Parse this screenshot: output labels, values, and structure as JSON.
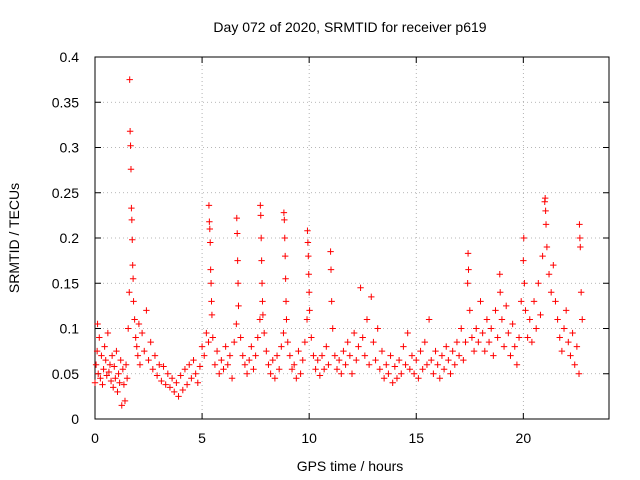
{
  "chart_data": {
    "type": "scatter",
    "title": "Day 072 of 2020, SRMTID for receiver p619",
    "xlabel": "GPS time / hours",
    "ylabel": "SRMTID / TECUs",
    "xlim": [
      0,
      24
    ],
    "ylim": [
      0,
      0.4
    ],
    "x_ticks": [
      0,
      5,
      10,
      15,
      20
    ],
    "x_tick_labels": [
      "0",
      "5",
      "10",
      "15",
      "20"
    ],
    "y_ticks": [
      0,
      0.05,
      0.1,
      0.15,
      0.2,
      0.25,
      0.3,
      0.35,
      0.4
    ],
    "y_tick_labels": [
      "0",
      "0.05",
      "0.1",
      "0.15",
      "0.2",
      "0.25",
      "0.3",
      "0.35",
      "0.4"
    ],
    "grid": true,
    "marker": "+",
    "color": "#ff0000",
    "series": [
      {
        "name": "SRMTID",
        "points": [
          [
            0.0,
            0.04
          ],
          [
            0.05,
            0.06
          ],
          [
            0.1,
            0.075
          ],
          [
            0.12,
            0.105
          ],
          [
            0.15,
            0.05
          ],
          [
            0.2,
            0.09
          ],
          [
            0.25,
            0.045
          ],
          [
            0.3,
            0.07
          ],
          [
            0.35,
            0.038
          ],
          [
            0.4,
            0.055
          ],
          [
            0.45,
            0.08
          ],
          [
            0.5,
            0.065
          ],
          [
            0.55,
            0.048
          ],
          [
            0.6,
            0.095
          ],
          [
            0.65,
            0.052
          ],
          [
            0.7,
            0.06
          ],
          [
            0.75,
            0.042
          ],
          [
            0.8,
            0.07
          ],
          [
            0.85,
            0.035
          ],
          [
            0.9,
            0.058
          ],
          [
            0.95,
            0.045
          ],
          [
            1.0,
            0.075
          ],
          [
            1.05,
            0.03
          ],
          [
            1.1,
            0.05
          ],
          [
            1.15,
            0.04
          ],
          [
            1.2,
            0.065
          ],
          [
            1.25,
            0.015
          ],
          [
            1.3,
            0.055
          ],
          [
            1.35,
            0.038
          ],
          [
            1.4,
            0.02
          ],
          [
            1.45,
            0.06
          ],
          [
            1.5,
            0.045
          ],
          [
            1.55,
            0.1
          ],
          [
            1.6,
            0.14
          ],
          [
            1.62,
            0.375
          ],
          [
            1.64,
            0.318
          ],
          [
            1.66,
            0.302
          ],
          [
            1.68,
            0.276
          ],
          [
            1.7,
            0.233
          ],
          [
            1.72,
            0.22
          ],
          [
            1.74,
            0.198
          ],
          [
            1.76,
            0.17
          ],
          [
            1.78,
            0.155
          ],
          [
            1.8,
            0.13
          ],
          [
            1.85,
            0.11
          ],
          [
            1.9,
            0.09
          ],
          [
            1.95,
            0.08
          ],
          [
            2.0,
            0.07
          ],
          [
            2.05,
            0.105
          ],
          [
            2.1,
            0.06
          ],
          [
            2.2,
            0.095
          ],
          [
            2.3,
            0.075
          ],
          [
            2.4,
            0.12
          ],
          [
            2.5,
            0.065
          ],
          [
            2.6,
            0.085
          ],
          [
            2.7,
            0.055
          ],
          [
            2.8,
            0.07
          ],
          [
            2.9,
            0.048
          ],
          [
            3.0,
            0.06
          ],
          [
            3.1,
            0.042
          ],
          [
            3.2,
            0.058
          ],
          [
            3.3,
            0.038
          ],
          [
            3.4,
            0.05
          ],
          [
            3.5,
            0.035
          ],
          [
            3.6,
            0.045
          ],
          [
            3.7,
            0.03
          ],
          [
            3.8,
            0.04
          ],
          [
            3.9,
            0.025
          ],
          [
            4.0,
            0.048
          ],
          [
            4.1,
            0.032
          ],
          [
            4.2,
            0.055
          ],
          [
            4.3,
            0.038
          ],
          [
            4.4,
            0.06
          ],
          [
            4.5,
            0.045
          ],
          [
            4.6,
            0.065
          ],
          [
            4.7,
            0.05
          ],
          [
            4.8,
            0.04
          ],
          [
            4.9,
            0.058
          ],
          [
            5.0,
            0.08
          ],
          [
            5.1,
            0.07
          ],
          [
            5.2,
            0.095
          ],
          [
            5.3,
            0.085
          ],
          [
            5.32,
            0.236
          ],
          [
            5.34,
            0.218
          ],
          [
            5.36,
            0.21
          ],
          [
            5.38,
            0.195
          ],
          [
            5.4,
            0.165
          ],
          [
            5.42,
            0.15
          ],
          [
            5.44,
            0.13
          ],
          [
            5.46,
            0.115
          ],
          [
            5.5,
            0.09
          ],
          [
            5.6,
            0.06
          ],
          [
            5.7,
            0.075
          ],
          [
            5.8,
            0.05
          ],
          [
            5.9,
            0.065
          ],
          [
            6.0,
            0.055
          ],
          [
            6.1,
            0.08
          ],
          [
            6.2,
            0.06
          ],
          [
            6.3,
            0.07
          ],
          [
            6.4,
            0.045
          ],
          [
            6.5,
            0.085
          ],
          [
            6.6,
            0.105
          ],
          [
            6.62,
            0.222
          ],
          [
            6.64,
            0.205
          ],
          [
            6.66,
            0.175
          ],
          [
            6.68,
            0.15
          ],
          [
            6.7,
            0.125
          ],
          [
            6.8,
            0.09
          ],
          [
            6.9,
            0.07
          ],
          [
            7.0,
            0.06
          ],
          [
            7.1,
            0.05
          ],
          [
            7.2,
            0.065
          ],
          [
            7.3,
            0.08
          ],
          [
            7.4,
            0.055
          ],
          [
            7.5,
            0.07
          ],
          [
            7.6,
            0.09
          ],
          [
            7.7,
            0.11
          ],
          [
            7.72,
            0.236
          ],
          [
            7.74,
            0.225
          ],
          [
            7.76,
            0.2
          ],
          [
            7.78,
            0.175
          ],
          [
            7.8,
            0.15
          ],
          [
            7.82,
            0.13
          ],
          [
            7.84,
            0.115
          ],
          [
            7.9,
            0.095
          ],
          [
            8.0,
            0.075
          ],
          [
            8.1,
            0.06
          ],
          [
            8.2,
            0.05
          ],
          [
            8.3,
            0.065
          ],
          [
            8.4,
            0.045
          ],
          [
            8.5,
            0.07
          ],
          [
            8.6,
            0.055
          ],
          [
            8.7,
            0.08
          ],
          [
            8.8,
            0.095
          ],
          [
            8.82,
            0.228
          ],
          [
            8.84,
            0.22
          ],
          [
            8.86,
            0.2
          ],
          [
            8.88,
            0.18
          ],
          [
            8.9,
            0.155
          ],
          [
            8.92,
            0.13
          ],
          [
            8.94,
            0.11
          ],
          [
            9.0,
            0.085
          ],
          [
            9.1,
            0.07
          ],
          [
            9.2,
            0.055
          ],
          [
            9.3,
            0.06
          ],
          [
            9.4,
            0.045
          ],
          [
            9.5,
            0.075
          ],
          [
            9.6,
            0.05
          ],
          [
            9.7,
            0.065
          ],
          [
            9.8,
            0.085
          ],
          [
            9.9,
            0.11
          ],
          [
            9.92,
            0.208
          ],
          [
            9.94,
            0.195
          ],
          [
            9.96,
            0.18
          ],
          [
            9.98,
            0.16
          ],
          [
            10.0,
            0.14
          ],
          [
            10.02,
            0.12
          ],
          [
            10.1,
            0.09
          ],
          [
            10.2,
            0.07
          ],
          [
            10.3,
            0.055
          ],
          [
            10.4,
            0.065
          ],
          [
            10.5,
            0.048
          ],
          [
            10.6,
            0.07
          ],
          [
            10.7,
            0.055
          ],
          [
            10.8,
            0.08
          ],
          [
            10.9,
            0.06
          ],
          [
            11.0,
            0.185
          ],
          [
            11.02,
            0.165
          ],
          [
            11.05,
            0.13
          ],
          [
            11.1,
            0.1
          ],
          [
            11.2,
            0.07
          ],
          [
            11.3,
            0.055
          ],
          [
            11.4,
            0.065
          ],
          [
            11.5,
            0.05
          ],
          [
            11.6,
            0.075
          ],
          [
            11.7,
            0.06
          ],
          [
            11.8,
            0.085
          ],
          [
            11.9,
            0.07
          ],
          [
            12.0,
            0.05
          ],
          [
            12.1,
            0.095
          ],
          [
            12.2,
            0.065
          ],
          [
            12.3,
            0.08
          ],
          [
            12.4,
            0.145
          ],
          [
            12.5,
            0.09
          ],
          [
            12.6,
            0.07
          ],
          [
            12.7,
            0.11
          ],
          [
            12.8,
            0.06
          ],
          [
            12.9,
            0.135
          ],
          [
            13.0,
            0.085
          ],
          [
            13.1,
            0.065
          ],
          [
            13.2,
            0.1
          ],
          [
            13.3,
            0.055
          ],
          [
            13.4,
            0.075
          ],
          [
            13.5,
            0.045
          ],
          [
            13.6,
            0.06
          ],
          [
            13.7,
            0.05
          ],
          [
            13.8,
            0.07
          ],
          [
            13.9,
            0.04
          ],
          [
            14.0,
            0.058
          ],
          [
            14.1,
            0.045
          ],
          [
            14.2,
            0.065
          ],
          [
            14.3,
            0.05
          ],
          [
            14.4,
            0.08
          ],
          [
            14.5,
            0.06
          ],
          [
            14.6,
            0.095
          ],
          [
            14.7,
            0.055
          ],
          [
            14.8,
            0.07
          ],
          [
            14.9,
            0.05
          ],
          [
            15.0,
            0.065
          ],
          [
            15.1,
            0.045
          ],
          [
            15.2,
            0.075
          ],
          [
            15.3,
            0.055
          ],
          [
            15.4,
            0.085
          ],
          [
            15.5,
            0.06
          ],
          [
            15.6,
            0.11
          ],
          [
            15.7,
            0.065
          ],
          [
            15.8,
            0.05
          ],
          [
            15.9,
            0.075
          ],
          [
            16.0,
            0.06
          ],
          [
            16.1,
            0.045
          ],
          [
            16.2,
            0.07
          ],
          [
            16.3,
            0.055
          ],
          [
            16.4,
            0.08
          ],
          [
            16.5,
            0.065
          ],
          [
            16.6,
            0.05
          ],
          [
            16.7,
            0.075
          ],
          [
            16.8,
            0.06
          ],
          [
            16.9,
            0.085
          ],
          [
            17.0,
            0.07
          ],
          [
            17.1,
            0.1
          ],
          [
            17.2,
            0.065
          ],
          [
            17.3,
            0.085
          ],
          [
            17.4,
            0.15
          ],
          [
            17.42,
            0.183
          ],
          [
            17.44,
            0.165
          ],
          [
            17.5,
            0.12
          ],
          [
            17.6,
            0.09
          ],
          [
            17.7,
            0.075
          ],
          [
            17.8,
            0.1
          ],
          [
            17.9,
            0.085
          ],
          [
            18.0,
            0.13
          ],
          [
            18.1,
            0.095
          ],
          [
            18.2,
            0.075
          ],
          [
            18.3,
            0.11
          ],
          [
            18.4,
            0.085
          ],
          [
            18.5,
            0.1
          ],
          [
            18.6,
            0.07
          ],
          [
            18.7,
            0.12
          ],
          [
            18.8,
            0.09
          ],
          [
            18.9,
            0.16
          ],
          [
            18.92,
            0.14
          ],
          [
            19.0,
            0.11
          ],
          [
            19.1,
            0.08
          ],
          [
            19.2,
            0.125
          ],
          [
            19.3,
            0.095
          ],
          [
            19.4,
            0.07
          ],
          [
            19.5,
            0.105
          ],
          [
            19.6,
            0.08
          ],
          [
            19.7,
            0.06
          ],
          [
            19.8,
            0.09
          ],
          [
            19.9,
            0.13
          ],
          [
            20.0,
            0.175
          ],
          [
            20.02,
            0.2
          ],
          [
            20.05,
            0.15
          ],
          [
            20.1,
            0.12
          ],
          [
            20.2,
            0.09
          ],
          [
            20.3,
            0.11
          ],
          [
            20.4,
            0.085
          ],
          [
            20.5,
            0.13
          ],
          [
            20.6,
            0.1
          ],
          [
            20.7,
            0.15
          ],
          [
            20.8,
            0.115
          ],
          [
            20.9,
            0.18
          ],
          [
            21.0,
            0.24
          ],
          [
            21.02,
            0.244
          ],
          [
            21.04,
            0.23
          ],
          [
            21.06,
            0.215
          ],
          [
            21.1,
            0.19
          ],
          [
            21.2,
            0.16
          ],
          [
            21.3,
            0.14
          ],
          [
            21.4,
            0.17
          ],
          [
            21.5,
            0.13
          ],
          [
            21.6,
            0.11
          ],
          [
            21.7,
            0.09
          ],
          [
            21.8,
            0.075
          ],
          [
            21.9,
            0.1
          ],
          [
            22.0,
            0.12
          ],
          [
            22.1,
            0.085
          ],
          [
            22.2,
            0.07
          ],
          [
            22.3,
            0.095
          ],
          [
            22.4,
            0.06
          ],
          [
            22.5,
            0.08
          ],
          [
            22.6,
            0.05
          ],
          [
            22.62,
            0.215
          ],
          [
            22.64,
            0.2
          ],
          [
            22.66,
            0.19
          ],
          [
            22.7,
            0.14
          ],
          [
            22.75,
            0.11
          ]
        ]
      }
    ]
  }
}
